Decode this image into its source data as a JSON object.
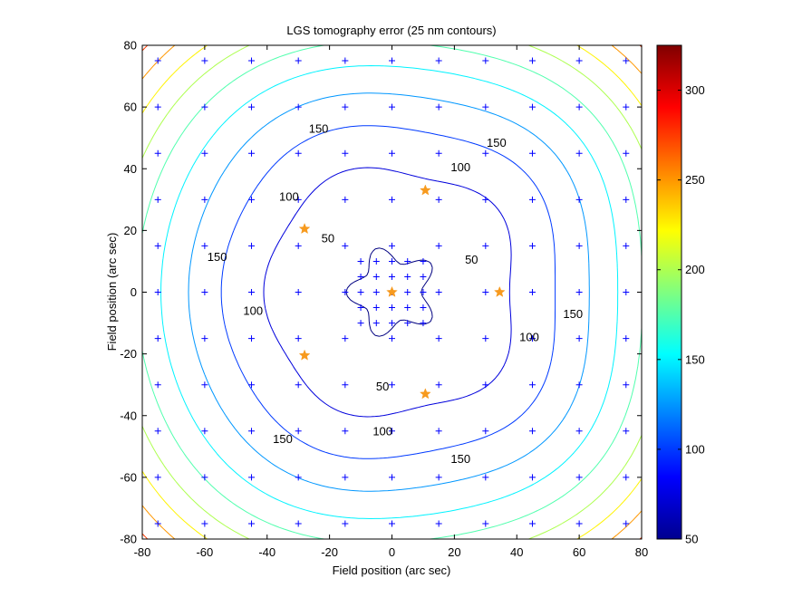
{
  "chart_data": {
    "type": "contour",
    "title": "LGS tomography error (25 nm contours)",
    "xlabel": "Field position (arc sec)",
    "ylabel": "Field position (arc sec)",
    "xlim": [
      -80,
      80
    ],
    "ylim": [
      -80,
      80
    ],
    "x_ticks": [
      -80,
      -60,
      -40,
      -20,
      0,
      20,
      40,
      60,
      80
    ],
    "y_ticks": [
      -80,
      -60,
      -40,
      -20,
      0,
      20,
      40,
      60,
      80
    ],
    "colorbar": {
      "min": 50,
      "max": 325,
      "ticks": [
        50,
        100,
        150,
        200,
        250,
        300
      ],
      "colormap": "jet"
    },
    "contour_levels": [
      50,
      75,
      100,
      125,
      150,
      175,
      200,
      225,
      250,
      275,
      300
    ],
    "contour_labels": [
      {
        "text": "50",
        "x": -20.5,
        "y": 17.5
      },
      {
        "text": "50",
        "x": 25.5,
        "y": 10.5
      },
      {
        "text": "50",
        "x": -3,
        "y": -30.5
      },
      {
        "text": "100",
        "x": 22,
        "y": 40.5
      },
      {
        "text": "100",
        "x": -33,
        "y": 31
      },
      {
        "text": "100",
        "x": -44.5,
        "y": -6
      },
      {
        "text": "100",
        "x": 44,
        "y": -14.5
      },
      {
        "text": "100",
        "x": -3,
        "y": -45
      },
      {
        "text": "150",
        "x": -23.5,
        "y": 53
      },
      {
        "text": "150",
        "x": 33.5,
        "y": 48.5
      },
      {
        "text": "150",
        "x": -56,
        "y": 11.5
      },
      {
        "text": "150",
        "x": 58,
        "y": -7
      },
      {
        "text": "150",
        "x": -35,
        "y": -47.5
      },
      {
        "text": "150",
        "x": 22,
        "y": -54
      }
    ],
    "guide_star_markers": [
      {
        "x": 0,
        "y": 0
      },
      {
        "x": 34.5,
        "y": 0
      },
      {
        "x": 10.7,
        "y": 33
      },
      {
        "x": -28,
        "y": 20.5
      },
      {
        "x": -28,
        "y": -20.5
      },
      {
        "x": 10.7,
        "y": -33
      }
    ],
    "grid_points_outer": [
      -75,
      -60,
      -45,
      -30,
      -15,
      0,
      15,
      30,
      45,
      60,
      75
    ],
    "grid_points_inner": [
      -10,
      -5,
      0,
      5,
      10
    ],
    "colors": {
      "contour_low": "#00008f",
      "marker_plus": "#0000ff",
      "marker_star": "#f79a1e"
    }
  }
}
